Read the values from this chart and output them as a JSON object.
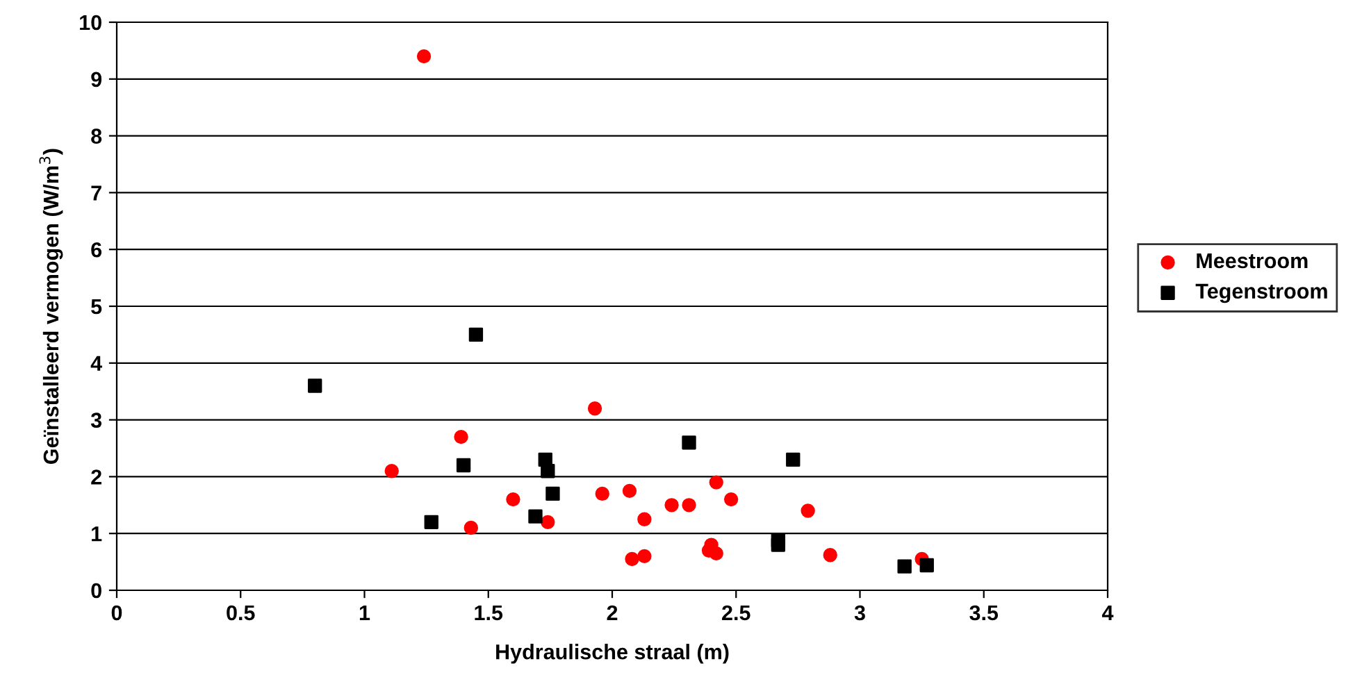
{
  "chart_data": {
    "type": "scatter",
    "xlabel": "Hydraulische straal (m)",
    "ylabel": "Geïnstalleerd vermogen (W/m$^{3}$)",
    "xlim": [
      0,
      4
    ],
    "xticks": [
      0,
      {
        "value": 0.5,
        "label": "0.5"
      },
      1,
      {
        "value": 1.5,
        "label": "1.5"
      },
      2,
      {
        "value": 2.5,
        "label": "2.5"
      },
      3,
      {
        "value": 3.5,
        "label": "3.5"
      },
      4
    ],
    "ylim": [
      0,
      10
    ],
    "yticks": [
      0,
      1,
      2,
      3,
      4,
      5,
      6,
      7,
      8,
      9,
      10
    ],
    "grid": "y",
    "legend": "right",
    "series": [
      {
        "name": "Meestroom",
        "color": "#ff0000",
        "marker": "circle",
        "x": [
          1.24,
          1.11,
          1.39,
          1.43,
          1.6,
          1.74,
          1.93,
          1.96,
          2.07,
          2.13,
          2.08,
          2.13,
          2.24,
          2.31,
          2.42,
          2.48,
          2.4,
          2.39,
          2.42,
          2.79,
          2.88,
          3.25
        ],
        "values": [
          9.4,
          2.1,
          2.7,
          1.1,
          1.6,
          1.2,
          3.2,
          1.7,
          1.75,
          1.25,
          0.55,
          0.6,
          1.5,
          1.5,
          1.9,
          1.6,
          0.8,
          0.7,
          0.65,
          1.4,
          0.62,
          0.55
        ]
      },
      {
        "name": "Tegenstroom",
        "color": "#000000",
        "marker": "square",
        "x": [
          0.8,
          1.27,
          1.45,
          1.4,
          1.69,
          1.73,
          1.74,
          1.76,
          2.31,
          2.67,
          2.67,
          2.73,
          3.18,
          3.27
        ],
        "values": [
          3.6,
          1.2,
          4.5,
          2.2,
          1.3,
          2.3,
          2.1,
          1.7,
          2.6,
          0.88,
          0.8,
          2.3,
          0.42,
          0.44
        ]
      }
    ]
  }
}
